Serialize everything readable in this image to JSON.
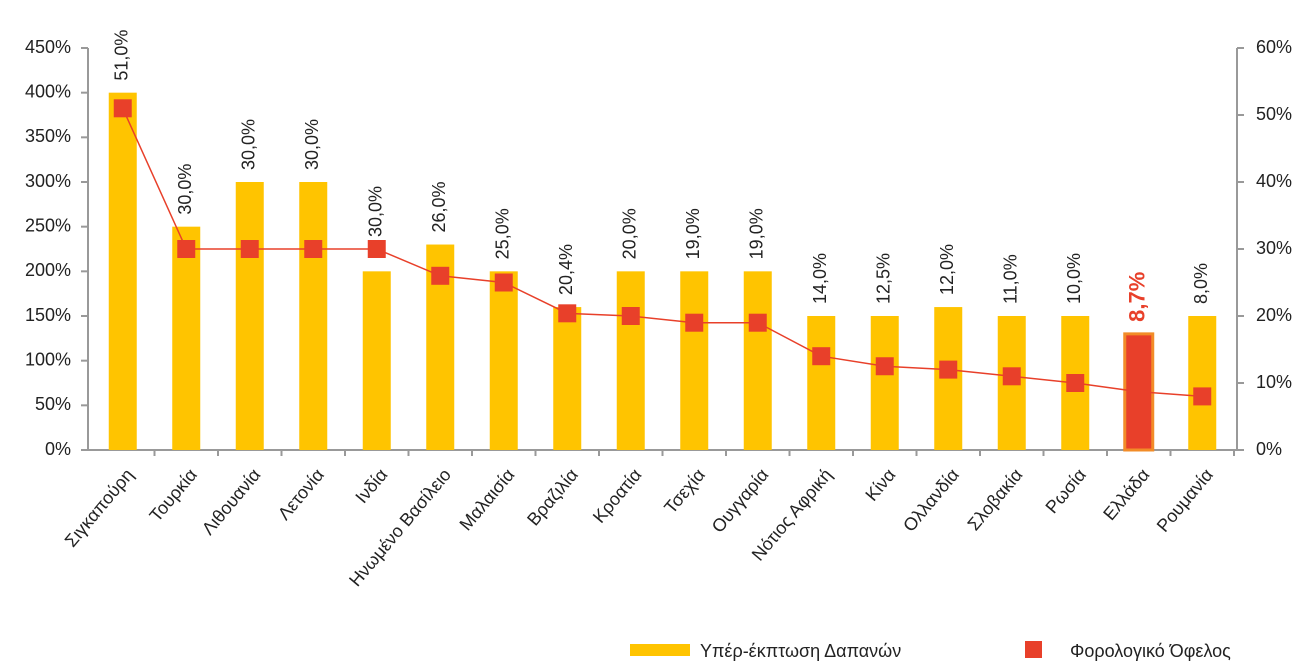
{
  "chart_data": {
    "type": "bar",
    "categories": [
      "Σιγκαπούρη",
      "Τουρκία",
      "Λιθουανία",
      "Λετονία",
      "Ινδία",
      "Ηνωμένο Βασίλειο",
      "Μαλαισία",
      "Βραζιλία",
      "Κροατία",
      "Τσεχία",
      "Ουγγαρία",
      "Νότιος Αφρική",
      "Κίνα",
      "Ολλανδία",
      "Σλοβακία",
      "Ρωσία",
      "Ελλάδα",
      "Ρουμανία"
    ],
    "series": [
      {
        "name": "Υπέρ-έκπτωση Δαπανών",
        "type": "bar",
        "color": "#FFC400",
        "bar_colors": [
          "#FFC400",
          "#FFC400",
          "#FFC400",
          "#FFC400",
          "#FFC400",
          "#FFC400",
          "#FFC400",
          "#FFC400",
          "#FFC400",
          "#FFC400",
          "#FFC400",
          "#FFC400",
          "#FFC400",
          "#FFC400",
          "#FFC400",
          "#FFC400",
          "#E8402A",
          "#FFC400"
        ],
        "values": [
          400,
          250,
          300,
          300,
          200,
          230,
          200,
          160,
          200,
          200,
          200,
          150,
          150,
          160,
          150,
          150,
          130,
          150
        ]
      },
      {
        "name": "Φορολογικό Όφελος",
        "type": "line",
        "axis": "y2",
        "color": "#E8402A",
        "values": [
          51,
          30,
          30,
          30,
          30,
          26,
          25,
          20.4,
          20,
          19,
          19,
          14,
          12.5,
          12,
          11,
          10,
          8.7,
          8
        ],
        "value_labels": [
          "51,0%",
          "30,0%",
          "30,0%",
          "30,0%",
          "30,0%",
          "26,0%",
          "25,0%",
          "20,4%",
          "20,0%",
          "19,0%",
          "19,0%",
          "14,0%",
          "12,5%",
          "12,0%",
          "11,0%",
          "10,0%",
          "8,7%",
          "8,0%"
        ],
        "value_label_colors": [
          "#222222",
          "#222222",
          "#222222",
          "#222222",
          "#222222",
          "#222222",
          "#222222",
          "#222222",
          "#222222",
          "#222222",
          "#222222",
          "#222222",
          "#222222",
          "#222222",
          "#222222",
          "#222222",
          "#E8402A",
          "#222222"
        ]
      }
    ],
    "ylim": [
      0,
      450
    ],
    "yticks": [
      {
        "value": 0,
        "label": "0%"
      },
      {
        "value": 50,
        "label": "50%"
      },
      {
        "value": 100,
        "label": "100%"
      },
      {
        "value": 150,
        "label": "150%"
      },
      {
        "value": 200,
        "label": "200%"
      },
      {
        "value": 250,
        "label": "250%"
      },
      {
        "value": 300,
        "label": "300%"
      },
      {
        "value": 350,
        "label": "350%"
      },
      {
        "value": 400,
        "label": "400%"
      },
      {
        "value": 450,
        "label": "450%"
      }
    ],
    "y2lim": [
      0,
      60
    ],
    "y2ticks": [
      {
        "value": 0,
        "label": "0%"
      },
      {
        "value": 10,
        "label": "10%"
      },
      {
        "value": 20,
        "label": "20%"
      },
      {
        "value": 30,
        "label": "30%"
      },
      {
        "value": 40,
        "label": "40%"
      },
      {
        "value": 50,
        "label": "50%"
      },
      {
        "value": 60,
        "label": "60%"
      }
    ]
  }
}
